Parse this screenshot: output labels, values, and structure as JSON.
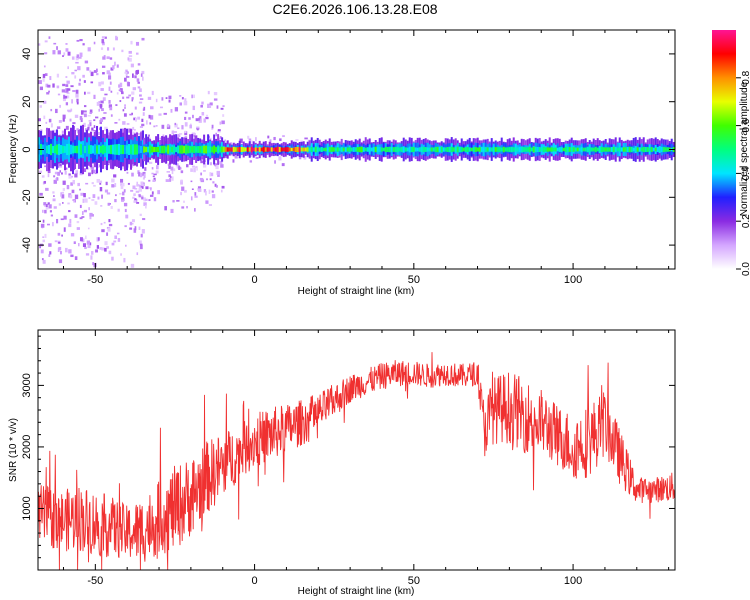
{
  "figure_title": "C2E6.2026.106.13.28.E08",
  "chart_data": [
    {
      "type": "heatmap",
      "title": "",
      "xlabel": "Height of straight line (km)",
      "ylabel": "Frequency (Hz)",
      "xlim": [
        -68,
        132
      ],
      "ylim": [
        -50,
        50
      ],
      "x_ticks": [
        -50,
        0,
        50,
        100
      ],
      "y_ticks": [
        -40,
        -20,
        0,
        20,
        40
      ],
      "colorbar": {
        "label": "Normalized spectral amplitude",
        "range": [
          0,
          1
        ],
        "ticks": [
          0.0,
          0.2,
          0.4,
          0.6,
          0.8
        ],
        "tick_labels": [
          "0.0",
          "0.2",
          "0.4",
          "0.6",
          "0.8"
        ],
        "colormap": [
          "#ffffff",
          "#d4a6ff",
          "#8a2be2",
          "#2020ff",
          "#00e5ff",
          "#00ff7f",
          "#40ff00",
          "#e8ff00",
          "#ff9000",
          "#ff0000",
          "#ff1493"
        ]
      },
      "bands": [
        {
          "x": [
            -68,
            -35
          ],
          "center": 0,
          "core_halfwidth": 2,
          "outer_halfwidth": 8,
          "scatter_halfwidth": 48,
          "peak": 0.55
        },
        {
          "x": [
            -35,
            -10
          ],
          "center": 0,
          "core_halfwidth": 1.5,
          "outer_halfwidth": 5,
          "scatter_halfwidth": 25,
          "peak": 0.65
        },
        {
          "x": [
            -10,
            17
          ],
          "center": 0,
          "core_halfwidth": 1,
          "outer_halfwidth": 3,
          "scatter_halfwidth": 6,
          "peak": 0.98
        },
        {
          "x": [
            17,
            132
          ],
          "center": 0,
          "core_halfwidth": 1,
          "outer_halfwidth": 4,
          "scatter_halfwidth": 4,
          "peak": 0.6
        }
      ]
    },
    {
      "type": "line",
      "title": "",
      "xlabel": "Height of straight line (km)",
      "ylabel": "SNR (10 * v/v)",
      "xlim": [
        -68,
        132
      ],
      "ylim": [
        0,
        3900
      ],
      "x_ticks": [
        -50,
        0,
        50,
        100
      ],
      "y_ticks": [
        1000,
        2000,
        3000
      ],
      "color": "#f03030",
      "series": [
        {
          "x": [
            -68,
            -60,
            -55,
            -50,
            -45,
            -40,
            -35,
            -30,
            -25,
            -20,
            -15,
            -10,
            -5,
            0,
            5,
            10,
            15,
            20,
            25,
            30,
            35,
            40,
            45,
            50,
            55,
            60,
            65,
            70,
            72,
            75,
            80,
            85,
            90,
            95,
            100,
            105,
            110,
            115,
            120,
            125,
            132
          ],
          "y": [
            900,
            800,
            850,
            750,
            700,
            600,
            650,
            850,
            1000,
            1200,
            1500,
            1700,
            1900,
            2100,
            2200,
            2300,
            2400,
            2550,
            2750,
            2950,
            3050,
            3150,
            3200,
            3200,
            3150,
            3200,
            3150,
            3200,
            2300,
            2600,
            2650,
            2500,
            2400,
            2200,
            2000,
            2100,
            2400,
            1800,
            1300,
            1300,
            1350
          ],
          "noise": [
            500,
            500,
            550,
            550,
            500,
            450,
            550,
            600,
            700,
            650,
            600,
            550,
            450,
            450,
            450,
            400,
            380,
            320,
            280,
            230,
            220,
            220,
            220,
            200,
            200,
            200,
            200,
            200,
            500,
            550,
            600,
            600,
            550,
            500,
            550,
            600,
            550,
            450,
            220,
            200,
            250
          ]
        }
      ]
    }
  ]
}
